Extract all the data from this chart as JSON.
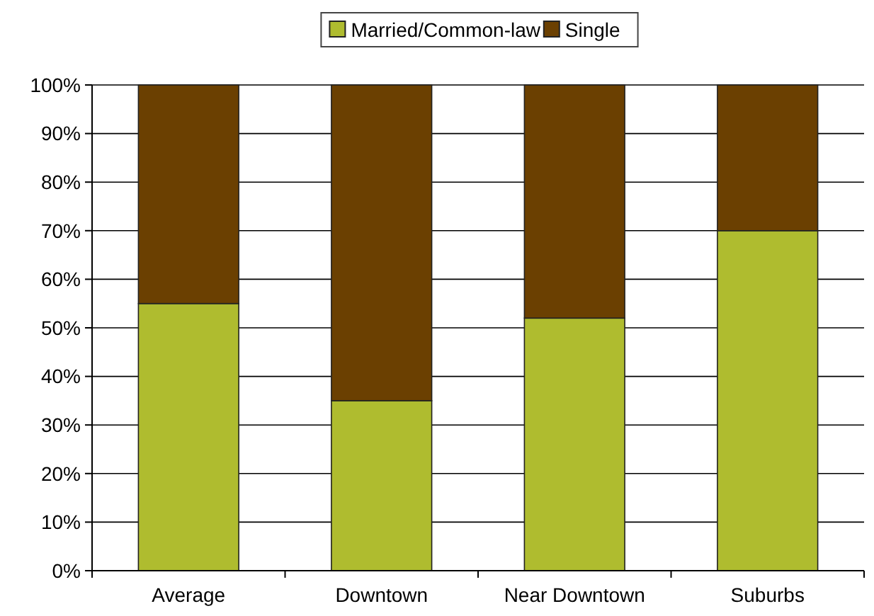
{
  "chart_data": {
    "type": "bar",
    "stacked": true,
    "categories": [
      "Average",
      "Downtown",
      "Near Downtown",
      "Suburbs"
    ],
    "series": [
      {
        "name": "Married/Common-law",
        "color": "#afbc2f",
        "values": [
          55,
          35,
          52,
          70
        ]
      },
      {
        "name": "Single",
        "color": "#6b4001",
        "values": [
          45,
          65,
          48,
          30
        ]
      }
    ],
    "ylim": [
      0,
      100
    ],
    "yticks": [
      {
        "value": 0,
        "label": "0%"
      },
      {
        "value": 10,
        "label": "10%"
      },
      {
        "value": 20,
        "label": "20%"
      },
      {
        "value": 30,
        "label": "30%"
      },
      {
        "value": 40,
        "label": "40%"
      },
      {
        "value": 50,
        "label": "50%"
      },
      {
        "value": 60,
        "label": "60%"
      },
      {
        "value": 70,
        "label": "70%"
      },
      {
        "value": 80,
        "label": "80%"
      },
      {
        "value": 90,
        "label": "90%"
      },
      {
        "value": 100,
        "label": "100%"
      }
    ],
    "grid": "y",
    "legend": "top"
  }
}
